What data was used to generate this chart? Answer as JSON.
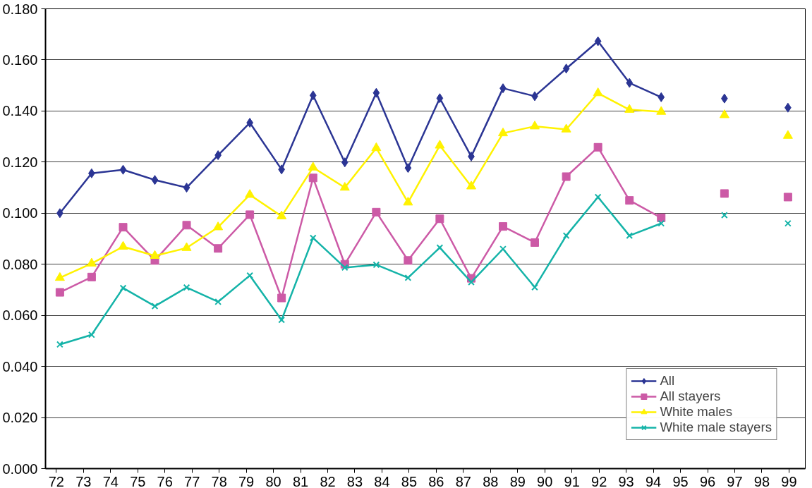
{
  "chart_data": {
    "type": "line",
    "x": [
      72.13,
      73.3,
      74.46,
      75.63,
      76.8,
      77.96,
      79.13,
      80.3,
      81.46,
      82.63,
      83.79,
      84.96,
      86.13,
      87.29,
      88.46,
      89.63,
      90.79,
      91.96,
      93.12,
      94.29,
      95.46,
      96.62,
      97.79,
      98.96
    ],
    "series": [
      {
        "name": "All",
        "color": "#2b3594",
        "marker": "diamond",
        "values": [
          0.1,
          0.1156,
          0.117,
          0.113,
          0.11,
          0.1227,
          0.1354,
          0.1171,
          0.1461,
          0.1199,
          0.1471,
          0.1177,
          0.145,
          0.1222,
          0.1489,
          0.1458,
          0.1566,
          0.1673,
          0.151,
          0.1454,
          null,
          0.1449,
          null,
          0.1413
        ]
      },
      {
        "name": "All stayers",
        "color": "#cc5aa6",
        "marker": "square",
        "values": [
          0.069,
          0.075,
          0.0945,
          0.0815,
          0.0953,
          0.0862,
          0.0994,
          0.0668,
          0.1138,
          0.08,
          0.1004,
          0.0815,
          0.0978,
          0.0745,
          0.0948,
          0.0885,
          0.1143,
          0.1258,
          0.105,
          0.0982,
          null,
          0.1077,
          null,
          0.1063
        ]
      },
      {
        "name": "White males",
        "color": "#fff200",
        "marker": "triangle",
        "values": [
          0.0747,
          0.0803,
          0.0869,
          0.0833,
          0.0864,
          0.0945,
          0.1072,
          0.0988,
          0.1179,
          0.11,
          0.1255,
          0.1042,
          0.1265,
          0.1105,
          0.1313,
          0.134,
          0.1328,
          0.147,
          0.1405,
          0.1397,
          null,
          0.1384,
          null,
          0.1303
        ]
      },
      {
        "name": "White male stayers",
        "color": "#14b3a8",
        "marker": "cross",
        "values": [
          0.0486,
          0.0524,
          0.0707,
          0.0636,
          0.0709,
          0.0653,
          0.0756,
          0.0582,
          0.0903,
          0.0787,
          0.0798,
          0.0747,
          0.0865,
          0.073,
          0.086,
          0.071,
          0.0912,
          0.1063,
          0.0912,
          0.096,
          null,
          0.0992,
          null,
          0.096
        ]
      }
    ],
    "xlim": [
      71.6,
      99.6
    ],
    "xticks": [
      72,
      73,
      74,
      75,
      76,
      77,
      78,
      79,
      80,
      81,
      82,
      83,
      84,
      85,
      86,
      87,
      88,
      89,
      90,
      91,
      92,
      93,
      94,
      95,
      96,
      97,
      98,
      99
    ],
    "ylim": [
      0,
      0.18
    ],
    "yticks": [
      {
        "value": 0,
        "label": "0.000"
      },
      {
        "value": 0.02,
        "label": "0.020"
      },
      {
        "value": 0.04,
        "label": "0.040"
      },
      {
        "value": 0.06,
        "label": "0.060"
      },
      {
        "value": 0.08,
        "label": "0.080"
      },
      {
        "value": 0.1,
        "label": "0.100"
      },
      {
        "value": 0.12,
        "label": "0.120"
      },
      {
        "value": 0.14,
        "label": "0.140"
      },
      {
        "value": 0.16,
        "label": "0.160"
      },
      {
        "value": 0.18,
        "label": "0.180"
      }
    ],
    "grid": "y",
    "legend": "bottom right",
    "line_style": "solid"
  }
}
